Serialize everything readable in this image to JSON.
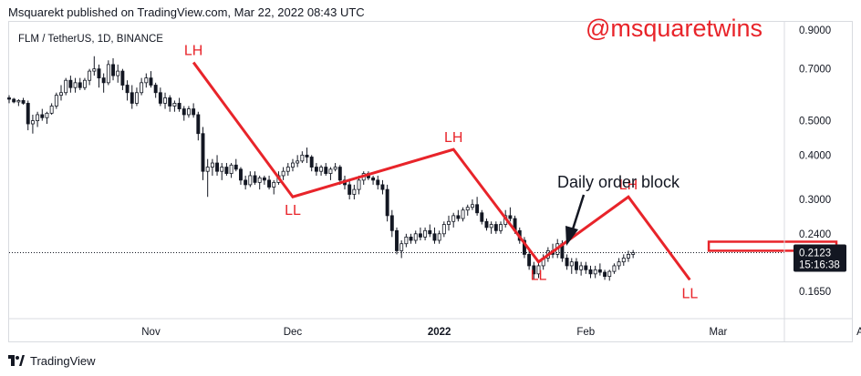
{
  "header": {
    "publisher_line": "Msquarekt published on TradingView.com, Mar 22, 2022 08:43 UTC"
  },
  "footer": {
    "brand": "TradingView",
    "logo_icon": "tradingview-logo-icon"
  },
  "colors": {
    "up": "#131722",
    "down": "#131722",
    "annotation": "#e8242a",
    "price_tag": "#131722",
    "grid": "#e1e3eb"
  },
  "chart_data": {
    "type": "candlestick",
    "title": "FLM / TetherUS, 1D, BINANCE",
    "watermark": "@msquaretwins",
    "scale": "log",
    "ylim": [
      0.14,
      0.95
    ],
    "x_range_days": [
      -30,
      134
    ],
    "xticks": [
      {
        "label": "Nov",
        "day": 0
      },
      {
        "label": "Dec",
        "day": 30
      },
      {
        "label": "2022",
        "day": 61,
        "bold": true
      },
      {
        "label": "Feb",
        "day": 92
      },
      {
        "label": "Mar",
        "day": 120
      },
      {
        "label": "Apr",
        "day": 151
      }
    ],
    "yticks": [
      0.9,
      0.7,
      0.5,
      0.4,
      0.3,
      0.24,
      0.165
    ],
    "ytick_labels": [
      "0.9000",
      "0.7000",
      "0.5000",
      "0.4000",
      "0.3000",
      "0.2400",
      "0.1650"
    ],
    "last_price": {
      "value": 0.2123,
      "label": "0.2123",
      "countdown": "15:16:38"
    },
    "swing_points": [
      {
        "day": 9,
        "price": 0.73,
        "label": "LH"
      },
      {
        "day": 30,
        "price": 0.305,
        "label": "LL"
      },
      {
        "day": 64,
        "price": 0.415,
        "label": "LH"
      },
      {
        "day": 82,
        "price": 0.2,
        "label": "LL"
      },
      {
        "day": 101,
        "price": 0.305,
        "label": "LH"
      },
      {
        "day": 114,
        "price": 0.178,
        "label": "LL"
      }
    ],
    "order_block": {
      "day_start": 118,
      "day_end": 145,
      "price_low": 0.215,
      "price_high": 0.228,
      "label": "Daily order block"
    },
    "ohlc": [
      [
        0.58,
        0.59,
        0.56,
        0.575
      ],
      [
        0.575,
        0.58,
        0.56,
        0.565
      ],
      [
        0.565,
        0.575,
        0.55,
        0.57
      ],
      [
        0.57,
        0.58,
        0.555,
        0.56
      ],
      [
        0.56,
        0.57,
        0.47,
        0.49
      ],
      [
        0.49,
        0.52,
        0.46,
        0.5
      ],
      [
        0.5,
        0.53,
        0.48,
        0.52
      ],
      [
        0.52,
        0.54,
        0.5,
        0.51
      ],
      [
        0.51,
        0.53,
        0.49,
        0.525
      ],
      [
        0.525,
        0.56,
        0.52,
        0.55
      ],
      [
        0.55,
        0.6,
        0.54,
        0.59
      ],
      [
        0.59,
        0.63,
        0.57,
        0.6
      ],
      [
        0.6,
        0.66,
        0.59,
        0.65
      ],
      [
        0.65,
        0.67,
        0.6,
        0.62
      ],
      [
        0.62,
        0.66,
        0.6,
        0.64
      ],
      [
        0.64,
        0.66,
        0.61,
        0.62
      ],
      [
        0.62,
        0.66,
        0.61,
        0.65
      ],
      [
        0.65,
        0.7,
        0.63,
        0.69
      ],
      [
        0.69,
        0.76,
        0.67,
        0.7
      ],
      [
        0.7,
        0.72,
        0.62,
        0.66
      ],
      [
        0.66,
        0.68,
        0.6,
        0.64
      ],
      [
        0.64,
        0.74,
        0.63,
        0.72
      ],
      [
        0.72,
        0.75,
        0.65,
        0.67
      ],
      [
        0.67,
        0.72,
        0.64,
        0.69
      ],
      [
        0.69,
        0.7,
        0.61,
        0.63
      ],
      [
        0.63,
        0.65,
        0.57,
        0.6
      ],
      [
        0.6,
        0.63,
        0.54,
        0.56
      ],
      [
        0.56,
        0.62,
        0.55,
        0.6
      ],
      [
        0.6,
        0.66,
        0.59,
        0.64
      ],
      [
        0.64,
        0.68,
        0.62,
        0.66
      ],
      [
        0.66,
        0.69,
        0.62,
        0.63
      ],
      [
        0.63,
        0.64,
        0.58,
        0.6
      ],
      [
        0.6,
        0.62,
        0.55,
        0.56
      ],
      [
        0.56,
        0.6,
        0.54,
        0.58
      ],
      [
        0.58,
        0.59,
        0.53,
        0.55
      ],
      [
        0.55,
        0.57,
        0.53,
        0.56
      ],
      [
        0.56,
        0.58,
        0.53,
        0.54
      ],
      [
        0.54,
        0.55,
        0.5,
        0.52
      ],
      [
        0.52,
        0.55,
        0.51,
        0.54
      ],
      [
        0.54,
        0.56,
        0.51,
        0.52
      ],
      [
        0.52,
        0.53,
        0.44,
        0.46
      ],
      [
        0.46,
        0.48,
        0.34,
        0.36
      ],
      [
        0.36,
        0.39,
        0.305,
        0.37
      ],
      [
        0.37,
        0.39,
        0.35,
        0.38
      ],
      [
        0.38,
        0.4,
        0.35,
        0.36
      ],
      [
        0.36,
        0.38,
        0.34,
        0.37
      ],
      [
        0.37,
        0.38,
        0.35,
        0.355
      ],
      [
        0.355,
        0.38,
        0.345,
        0.375
      ],
      [
        0.375,
        0.39,
        0.36,
        0.365
      ],
      [
        0.365,
        0.37,
        0.33,
        0.34
      ],
      [
        0.34,
        0.35,
        0.32,
        0.33
      ],
      [
        0.33,
        0.36,
        0.325,
        0.35
      ],
      [
        0.35,
        0.36,
        0.33,
        0.335
      ],
      [
        0.335,
        0.35,
        0.32,
        0.345
      ],
      [
        0.345,
        0.35,
        0.33,
        0.34
      ],
      [
        0.34,
        0.35,
        0.32,
        0.325
      ],
      [
        0.325,
        0.34,
        0.31,
        0.335
      ],
      [
        0.335,
        0.36,
        0.33,
        0.35
      ],
      [
        0.35,
        0.37,
        0.34,
        0.36
      ],
      [
        0.36,
        0.38,
        0.35,
        0.37
      ],
      [
        0.37,
        0.39,
        0.36,
        0.38
      ],
      [
        0.38,
        0.4,
        0.37,
        0.385
      ],
      [
        0.385,
        0.41,
        0.38,
        0.4
      ],
      [
        0.4,
        0.42,
        0.38,
        0.395
      ],
      [
        0.395,
        0.4,
        0.36,
        0.37
      ],
      [
        0.37,
        0.38,
        0.35,
        0.36
      ],
      [
        0.36,
        0.375,
        0.35,
        0.37
      ],
      [
        0.37,
        0.38,
        0.35,
        0.355
      ],
      [
        0.355,
        0.37,
        0.34,
        0.365
      ],
      [
        0.365,
        0.38,
        0.36,
        0.37
      ],
      [
        0.37,
        0.375,
        0.33,
        0.34
      ],
      [
        0.34,
        0.35,
        0.32,
        0.33
      ],
      [
        0.33,
        0.34,
        0.3,
        0.31
      ],
      [
        0.31,
        0.33,
        0.3,
        0.32
      ],
      [
        0.32,
        0.35,
        0.31,
        0.34
      ],
      [
        0.34,
        0.36,
        0.33,
        0.355
      ],
      [
        0.355,
        0.36,
        0.34,
        0.345
      ],
      [
        0.345,
        0.35,
        0.33,
        0.34
      ],
      [
        0.34,
        0.35,
        0.32,
        0.33
      ],
      [
        0.33,
        0.34,
        0.31,
        0.32
      ],
      [
        0.32,
        0.33,
        0.26,
        0.27
      ],
      [
        0.27,
        0.28,
        0.235,
        0.245
      ],
      [
        0.245,
        0.25,
        0.21,
        0.215
      ],
      [
        0.215,
        0.23,
        0.205,
        0.225
      ],
      [
        0.225,
        0.24,
        0.22,
        0.235
      ],
      [
        0.235,
        0.24,
        0.225,
        0.23
      ],
      [
        0.23,
        0.245,
        0.225,
        0.24
      ],
      [
        0.24,
        0.25,
        0.23,
        0.235
      ],
      [
        0.235,
        0.25,
        0.23,
        0.245
      ],
      [
        0.245,
        0.255,
        0.235,
        0.24
      ],
      [
        0.24,
        0.25,
        0.225,
        0.23
      ],
      [
        0.23,
        0.245,
        0.225,
        0.24
      ],
      [
        0.24,
        0.26,
        0.235,
        0.255
      ],
      [
        0.255,
        0.27,
        0.245,
        0.26
      ],
      [
        0.26,
        0.275,
        0.25,
        0.27
      ],
      [
        0.27,
        0.28,
        0.26,
        0.265
      ],
      [
        0.265,
        0.285,
        0.26,
        0.28
      ],
      [
        0.28,
        0.29,
        0.27,
        0.285
      ],
      [
        0.285,
        0.3,
        0.28,
        0.29
      ],
      [
        0.29,
        0.305,
        0.27,
        0.275
      ],
      [
        0.275,
        0.28,
        0.255,
        0.26
      ],
      [
        0.26,
        0.265,
        0.245,
        0.25
      ],
      [
        0.25,
        0.26,
        0.24,
        0.255
      ],
      [
        0.255,
        0.26,
        0.24,
        0.245
      ],
      [
        0.245,
        0.26,
        0.24,
        0.255
      ],
      [
        0.255,
        0.28,
        0.25,
        0.27
      ],
      [
        0.27,
        0.285,
        0.26,
        0.265
      ],
      [
        0.265,
        0.27,
        0.24,
        0.245
      ],
      [
        0.245,
        0.25,
        0.225,
        0.23
      ],
      [
        0.23,
        0.235,
        0.205,
        0.21
      ],
      [
        0.21,
        0.215,
        0.19,
        0.195
      ],
      [
        0.195,
        0.2,
        0.178,
        0.185
      ],
      [
        0.185,
        0.2,
        0.18,
        0.195
      ],
      [
        0.195,
        0.21,
        0.19,
        0.205
      ],
      [
        0.205,
        0.22,
        0.2,
        0.215
      ],
      [
        0.215,
        0.225,
        0.205,
        0.21
      ],
      [
        0.21,
        0.232,
        0.205,
        0.225
      ],
      [
        0.225,
        0.23,
        0.2,
        0.205
      ],
      [
        0.205,
        0.21,
        0.19,
        0.195
      ],
      [
        0.195,
        0.205,
        0.185,
        0.2
      ],
      [
        0.2,
        0.205,
        0.185,
        0.19
      ],
      [
        0.19,
        0.2,
        0.183,
        0.195
      ],
      [
        0.195,
        0.2,
        0.185,
        0.19
      ],
      [
        0.19,
        0.195,
        0.18,
        0.185
      ],
      [
        0.185,
        0.195,
        0.18,
        0.19
      ],
      [
        0.19,
        0.198,
        0.183,
        0.187
      ],
      [
        0.187,
        0.19,
        0.178,
        0.182
      ],
      [
        0.182,
        0.19,
        0.177,
        0.188
      ],
      [
        0.188,
        0.198,
        0.185,
        0.195
      ],
      [
        0.195,
        0.205,
        0.19,
        0.2
      ],
      [
        0.2,
        0.21,
        0.195,
        0.205
      ],
      [
        0.205,
        0.215,
        0.2,
        0.21
      ],
      [
        0.21,
        0.216,
        0.205,
        0.2123
      ]
    ]
  }
}
